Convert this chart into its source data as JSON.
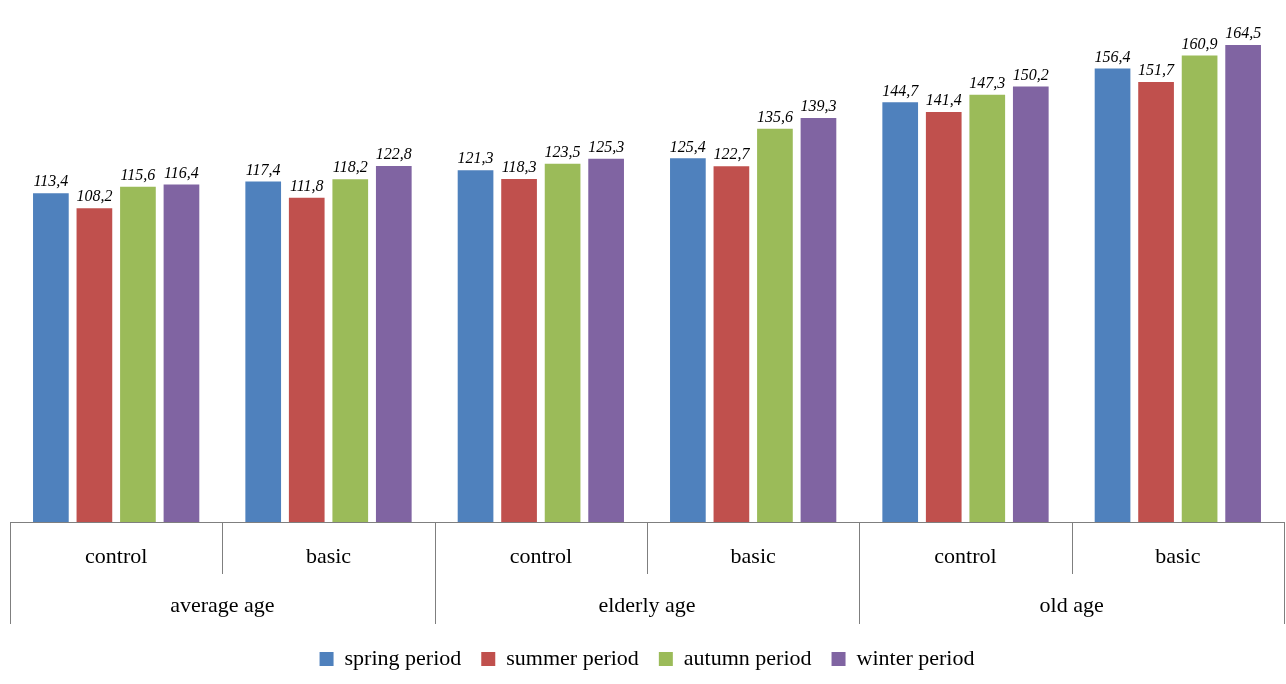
{
  "chart_data": {
    "type": "bar",
    "categories": [
      "control",
      "basic",
      "control",
      "basic",
      "control",
      "basic"
    ],
    "annotations": [
      "average age",
      "elderly age",
      "old age"
    ],
    "series": [
      {
        "name": "spring period",
        "color": "#4f81bd",
        "values": [
          113.4,
          117.4,
          121.3,
          125.4,
          144.7,
          156.4
        ],
        "value_labels": [
          "113,4",
          "117,4",
          "121,3",
          "125,4",
          "144,7",
          "156,4"
        ]
      },
      {
        "name": "summer period",
        "color": "#c0504d",
        "values": [
          108.2,
          111.8,
          118.3,
          122.7,
          141.4,
          151.7
        ],
        "value_labels": [
          "108,2",
          "111,8",
          "118,3",
          "122,7",
          "141,4",
          "151,7"
        ]
      },
      {
        "name": "autumn period",
        "color": "#9bbb59",
        "values": [
          115.6,
          118.2,
          123.5,
          135.6,
          147.3,
          160.9
        ],
        "value_labels": [
          "115,6",
          "118,2",
          "123,5",
          "135,6",
          "147,3",
          "160,9"
        ]
      },
      {
        "name": "winter period",
        "color": "#8064a2",
        "values": [
          116.4,
          122.8,
          125.3,
          139.3,
          150.2,
          164.5
        ],
        "value_labels": [
          "116,4",
          "122,8",
          "125,3",
          "139,3",
          "150,2",
          "164,5"
        ]
      }
    ],
    "grid": false,
    "legend": "bottom"
  }
}
